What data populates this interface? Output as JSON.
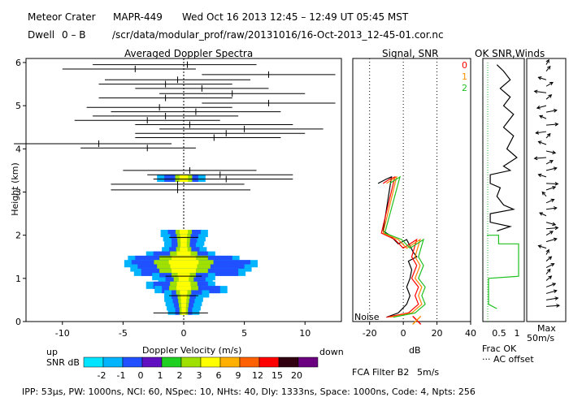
{
  "header": {
    "station": "Meteor Crater",
    "instrument": "MAPR-449",
    "datetime": "Wed Oct 16 2013 12:45 – 12:49 UT 05:45 MST",
    "dwell_label": "Dwell",
    "dwell_value": "0 – B",
    "file_path": "/scr/data/modular_prof/raw/20131016/16-Oct-2013_12-45-01.cor.nc"
  },
  "footer": {
    "text": "IPP: 53μs, PW: 1000ns, NCI: 60, NSpec: 10, NHts: 40, Dly: 1333ns, Space: 1000ns, Code: 4, Npts: 256"
  },
  "colorbar": {
    "up_label": "up",
    "down_label": "down",
    "snr_label": "SNR dB",
    "ticks": [
      "-2",
      "-1",
      "0",
      "1",
      "2",
      "3",
      "6",
      "9",
      "12",
      "15",
      "20"
    ],
    "colors": [
      "#00e5ff",
      "#00b4ff",
      "#2050ff",
      "#6010c0",
      "#20d020",
      "#a0e000",
      "#ffff00",
      "#ffb000",
      "#ff6000",
      "#ff0000",
      "#300010",
      "#6a0080"
    ]
  },
  "chart_data": [
    {
      "type": "doppler_spectra",
      "title": "Averaged Doppler Spectra",
      "xlabel": "Doppler Velocity (m/s)",
      "ylabel": "Height (km)",
      "xlim": [
        -13,
        13
      ],
      "ylim": [
        0,
        6.1
      ],
      "x_ticks": [
        "-10",
        "-5",
        "0",
        "5",
        "10"
      ],
      "y_ticks": [
        "0",
        "1",
        "2",
        "3",
        "4",
        "5",
        "6"
      ],
      "noise_spectra": [
        {
          "h": 5.95,
          "lo": -7.5,
          "hi": 6.0,
          "c": 0.3
        },
        {
          "h": 5.85,
          "lo": -10.0,
          "hi": 1.0,
          "c": -4.0
        },
        {
          "h": 5.72,
          "lo": 1.5,
          "hi": 12.5,
          "c": 7.0
        },
        {
          "h": 5.6,
          "lo": -6.5,
          "hi": 5.5,
          "c": -0.5
        },
        {
          "h": 5.5,
          "lo": -7.0,
          "hi": 4.0,
          "c": -1.5
        },
        {
          "h": 5.4,
          "lo": -4.0,
          "hi": 7.0,
          "c": 1.5
        },
        {
          "h": 5.28,
          "lo": -2.0,
          "hi": 10.0,
          "c": 4.0
        },
        {
          "h": 5.18,
          "lo": -7.0,
          "hi": 4.0,
          "c": -1.5
        },
        {
          "h": 5.06,
          "lo": 1.5,
          "hi": 12.5,
          "c": 7.0
        },
        {
          "h": 4.96,
          "lo": -8.0,
          "hi": 4.0,
          "c": -2.0
        },
        {
          "h": 4.86,
          "lo": -6.0,
          "hi": 8.0,
          "c": 1.0
        },
        {
          "h": 4.76,
          "lo": -7.5,
          "hi": 4.5,
          "c": -1.5
        },
        {
          "h": 4.66,
          "lo": -9.0,
          "hi": 3.0,
          "c": -3.0
        },
        {
          "h": 4.56,
          "lo": -4.0,
          "hi": 9.0,
          "c": 0.5
        },
        {
          "h": 4.46,
          "lo": -2.0,
          "hi": 11.5,
          "c": 5.0
        },
        {
          "h": 4.36,
          "lo": -4.0,
          "hi": 10.0,
          "c": 3.5
        },
        {
          "h": 4.26,
          "lo": -4.0,
          "hi": 8.0,
          "c": 2.5
        },
        {
          "h": 4.12,
          "lo": -14.0,
          "hi": -1.0,
          "c": -7.0
        },
        {
          "h": 4.02,
          "lo": -8.5,
          "hi": 1.0,
          "c": -3.0
        },
        {
          "h": 3.5,
          "lo": -5.0,
          "hi": 6.0,
          "c": 0.5
        },
        {
          "h": 3.4,
          "lo": -3.0,
          "hi": 9.0,
          "c": 3.0
        },
        {
          "h": 3.3,
          "lo": -2.5,
          "hi": 9.0,
          "c": 3.5
        },
        {
          "h": 3.18,
          "lo": -6.0,
          "hi": 5.0,
          "c": -0.5
        },
        {
          "h": 3.05,
          "lo": -6.0,
          "hi": 5.5,
          "c": -0.5
        }
      ],
      "echo_profile": [
        {
          "h": 3.33,
          "lo": -1.6,
          "hi": 1.2
        },
        {
          "h": 2.05,
          "lo": -1.3,
          "hi": 1.4
        },
        {
          "h": 1.95,
          "lo": -1.1,
          "hi": 1.2
        },
        {
          "h": 1.85,
          "lo": -1.0,
          "hi": 1.1
        },
        {
          "h": 1.75,
          "lo": -1.0,
          "hi": 1.0
        },
        {
          "h": 1.65,
          "lo": -1.2,
          "hi": 1.3
        },
        {
          "h": 1.55,
          "lo": -2.5,
          "hi": 2.0
        },
        {
          "h": 1.45,
          "lo": -4.0,
          "hi": 4.0
        },
        {
          "h": 1.35,
          "lo": -4.3,
          "hi": 5.5
        },
        {
          "h": 1.25,
          "lo": -3.8,
          "hi": 5.0
        },
        {
          "h": 1.15,
          "lo": -3.5,
          "hi": 4.5
        },
        {
          "h": 1.05,
          "lo": -2.0,
          "hi": 2.0
        },
        {
          "h": 0.95,
          "lo": -1.5,
          "hi": 1.8
        },
        {
          "h": 0.85,
          "lo": -2.5,
          "hi": 2.0
        },
        {
          "h": 0.75,
          "lo": -1.8,
          "hi": 3.0
        },
        {
          "h": 0.65,
          "lo": -1.0,
          "hi": 1.5
        },
        {
          "h": 0.55,
          "lo": -1.0,
          "hi": 1.0
        },
        {
          "h": 0.45,
          "lo": -0.9,
          "hi": 0.9
        },
        {
          "h": 0.35,
          "lo": -0.8,
          "hi": 0.8
        },
        {
          "h": 0.25,
          "lo": -0.7,
          "hi": 0.7
        }
      ],
      "lower_ticks": [
        {
          "h": 1.95,
          "lo": -1.2,
          "hi": 1.2
        },
        {
          "h": 1.5,
          "lo": -2.0,
          "hi": 2.0
        },
        {
          "h": 1.05,
          "lo": -1.5,
          "hi": 1.5
        },
        {
          "h": 0.6,
          "lo": -1.2,
          "hi": 1.2
        },
        {
          "h": 0.2,
          "lo": -2.5,
          "hi": 2.0
        }
      ]
    },
    {
      "type": "line",
      "title": "Signal, SNR",
      "xlabel": "dB",
      "xlim": [
        -30,
        40
      ],
      "x_ticks": [
        "-20",
        "0",
        "20",
        "40"
      ],
      "dotted_x": [
        -20,
        0,
        20
      ],
      "noise_label": "Noise",
      "marker": {
        "x": 8,
        "h": 0.03,
        "symbol": "X"
      },
      "series": [
        {
          "name": "signal",
          "color": "#000000",
          "points": [
            [
              -15,
              3.2
            ],
            [
              -10,
              3.3
            ],
            [
              -7,
              3.35
            ],
            [
              -12,
              2.1
            ],
            [
              -8,
              2.0
            ],
            [
              -3,
              1.8
            ],
            [
              2,
              1.9
            ],
            [
              6,
              1.6
            ],
            [
              8,
              1.5
            ],
            [
              3,
              1.4
            ],
            [
              5,
              1.2
            ],
            [
              4,
              1.0
            ],
            [
              2,
              0.8
            ],
            [
              4,
              0.6
            ],
            [
              2,
              0.4
            ],
            [
              -3,
              0.2
            ],
            [
              -10,
              0.1
            ]
          ]
        },
        {
          "name": "snr-0",
          "color": "#ff0000",
          "points": [
            [
              -12,
              3.2
            ],
            [
              -8,
              3.3
            ],
            [
              -5,
              3.35
            ],
            [
              -13,
              2.05
            ],
            [
              -5,
              1.9
            ],
            [
              0,
              1.7
            ],
            [
              8,
              1.9
            ],
            [
              5,
              1.5
            ],
            [
              8,
              1.3
            ],
            [
              5,
              1.0
            ],
            [
              9,
              0.8
            ],
            [
              7,
              0.6
            ],
            [
              9,
              0.4
            ],
            [
              3,
              0.2
            ],
            [
              -10,
              0.1
            ]
          ]
        },
        {
          "name": "snr-1",
          "color": "#ff8000",
          "points": [
            [
              -10,
              3.2
            ],
            [
              -6,
              3.3
            ],
            [
              -4,
              3.35
            ],
            [
              -12,
              2.05
            ],
            [
              -3,
              1.9
            ],
            [
              2,
              1.7
            ],
            [
              10,
              1.9
            ],
            [
              7,
              1.5
            ],
            [
              10,
              1.3
            ],
            [
              7,
              1.0
            ],
            [
              11,
              0.8
            ],
            [
              9,
              0.6
            ],
            [
              11,
              0.4
            ],
            [
              5,
              0.2
            ],
            [
              -8,
              0.1
            ]
          ]
        },
        {
          "name": "snr-2",
          "color": "#20c020",
          "points": [
            [
              -8,
              3.2
            ],
            [
              -4,
              3.3
            ],
            [
              -2,
              3.35
            ],
            [
              -11,
              2.05
            ],
            [
              -1,
              1.9
            ],
            [
              4,
              1.7
            ],
            [
              12,
              1.9
            ],
            [
              9,
              1.5
            ],
            [
              12,
              1.3
            ],
            [
              9,
              1.0
            ],
            [
              13,
              0.8
            ],
            [
              11,
              0.6
            ],
            [
              13,
              0.4
            ],
            [
              7,
              0.2
            ],
            [
              -6,
              0.1
            ]
          ]
        }
      ]
    },
    {
      "type": "line",
      "title": "OK SNR,Winds",
      "legend": [
        {
          "label": "0",
          "color": "#ff0000"
        },
        {
          "label": "1",
          "color": "#ff9000"
        },
        {
          "label": "2",
          "color": "#20c020"
        }
      ],
      "x_ticks": [
        "0.5",
        "1"
      ],
      "xlabel": "Frac OK",
      "dotted_label": "AC offset",
      "profile": [
        [
          0.3,
          5.95
        ],
        [
          0.5,
          5.8
        ],
        [
          0.7,
          5.6
        ],
        [
          0.4,
          5.4
        ],
        [
          0.7,
          5.2
        ],
        [
          0.5,
          5.0
        ],
        [
          0.8,
          4.8
        ],
        [
          0.5,
          4.5
        ],
        [
          0.8,
          4.3
        ],
        [
          0.6,
          4.0
        ],
        [
          0.9,
          3.8
        ],
        [
          0.5,
          3.6
        ],
        [
          0.7,
          3.5
        ],
        [
          0.1,
          3.4
        ],
        [
          0.1,
          3.2
        ],
        [
          0.4,
          3.1
        ],
        [
          0.3,
          2.9
        ],
        [
          0.5,
          2.7
        ],
        [
          0.8,
          2.6
        ],
        [
          0.1,
          2.5
        ],
        [
          0.1,
          2.3
        ],
        [
          0.7,
          2.2
        ],
        [
          0.3,
          2.1
        ]
      ],
      "frac_ok": [
        [
          0.0,
          2.0
        ],
        [
          0.35,
          2.0
        ],
        [
          0.35,
          1.8
        ],
        [
          0.95,
          1.8
        ],
        [
          0.95,
          1.05
        ],
        [
          0.05,
          1.0
        ],
        [
          0.05,
          0.4
        ],
        [
          0.3,
          0.3
        ]
      ]
    },
    {
      "type": "vector",
      "title": "Winds",
      "scale_label": "Max",
      "scale_value": "50m/s",
      "filter_label": "FCA Filter B2",
      "filter_value": "5m/s",
      "vectors": [
        {
          "h": 5.95,
          "dx": 0.2,
          "dy": -1.0
        },
        {
          "h": 5.8,
          "dx": 0.3,
          "dy": -1.0
        },
        {
          "h": 5.6,
          "dx": -0.6,
          "dy": -0.5
        },
        {
          "h": 5.45,
          "dx": 0.5,
          "dy": -0.8
        },
        {
          "h": 5.3,
          "dx": -0.9,
          "dy": -0.3
        },
        {
          "h": 5.15,
          "dx": 0.4,
          "dy": -0.9
        },
        {
          "h": 5.0,
          "dx": -0.7,
          "dy": 0.5
        },
        {
          "h": 4.85,
          "dx": 0.8,
          "dy": -0.4
        },
        {
          "h": 4.7,
          "dx": -0.5,
          "dy": -0.6
        },
        {
          "h": 4.55,
          "dx": 0.9,
          "dy": -0.2
        },
        {
          "h": 4.4,
          "dx": -0.8,
          "dy": 0.3
        },
        {
          "h": 4.25,
          "dx": 0.3,
          "dy": -0.9
        },
        {
          "h": 4.1,
          "dx": -0.6,
          "dy": -0.6
        },
        {
          "h": 3.95,
          "dx": 0.7,
          "dy": 0.4
        },
        {
          "h": 3.8,
          "dx": -0.9,
          "dy": 0.2
        },
        {
          "h": 3.65,
          "dx": 0.5,
          "dy": -0.7
        },
        {
          "h": 3.5,
          "dx": 0.8,
          "dy": -0.5
        },
        {
          "h": 3.35,
          "dx": -0.6,
          "dy": -0.5
        },
        {
          "h": 3.2,
          "dx": 0.9,
          "dy": 0.1
        },
        {
          "h": 3.05,
          "dx": 0.7,
          "dy": -0.6
        },
        {
          "h": 2.9,
          "dx": -0.3,
          "dy": -0.9
        },
        {
          "h": 2.75,
          "dx": 0.6,
          "dy": -0.7
        },
        {
          "h": 2.6,
          "dx": 0.8,
          "dy": -0.3
        },
        {
          "h": 2.45,
          "dx": -0.5,
          "dy": -0.6
        },
        {
          "h": 2.3,
          "dx": 0.7,
          "dy": 0.5
        },
        {
          "h": 2.15,
          "dx": 0.9,
          "dy": -0.2
        },
        {
          "h": 2.0,
          "dx": 0.5,
          "dy": -0.8
        },
        {
          "h": 1.85,
          "dx": 0.8,
          "dy": -0.6
        },
        {
          "h": 1.7,
          "dx": -0.6,
          "dy": -0.5
        },
        {
          "h": 1.55,
          "dx": 0.2,
          "dy": -1.0
        },
        {
          "h": 1.4,
          "dx": 0.4,
          "dy": -0.9
        },
        {
          "h": 1.25,
          "dx": 0.6,
          "dy": -0.8
        },
        {
          "h": 1.1,
          "dx": 0.3,
          "dy": -1.0
        },
        {
          "h": 0.95,
          "dx": 0.4,
          "dy": -0.9
        },
        {
          "h": 0.8,
          "dx": 0.7,
          "dy": -0.7
        },
        {
          "h": 0.65,
          "dx": 0.8,
          "dy": -0.6
        },
        {
          "h": 0.5,
          "dx": 0.9,
          "dy": -0.4
        },
        {
          "h": 0.35,
          "dx": 1.0,
          "dy": -0.2
        }
      ]
    }
  ]
}
